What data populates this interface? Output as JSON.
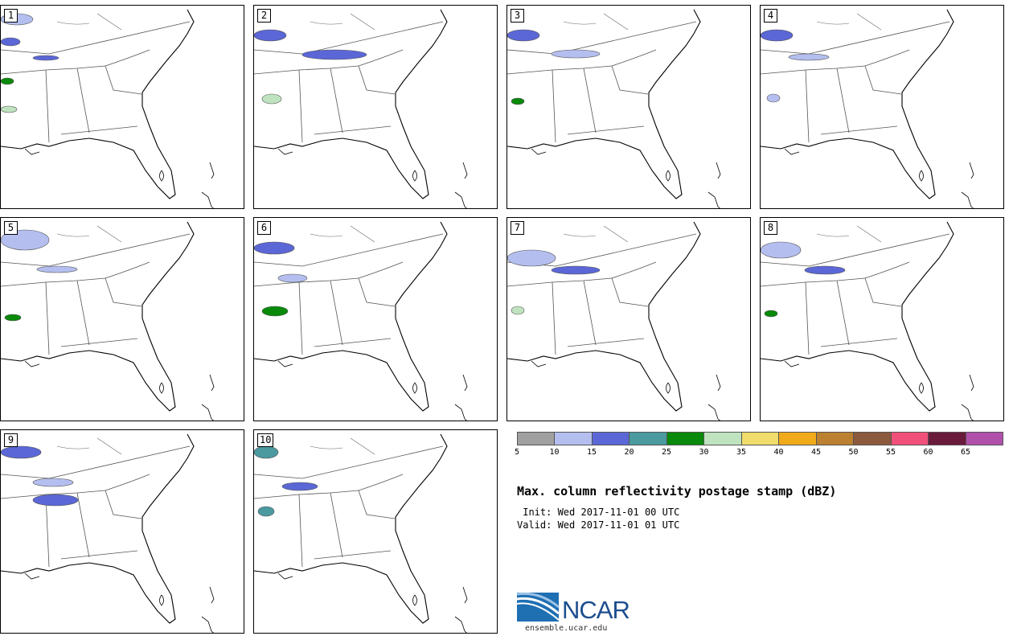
{
  "product": {
    "title": "Max. column reflectivity postage stamp (dBZ)",
    "init_line": " Init: Wed 2017-11-01 00 UTC",
    "valid_line": "Valid: Wed 2017-11-01 01 UTC"
  },
  "members": [
    {
      "label": "1"
    },
    {
      "label": "2"
    },
    {
      "label": "3"
    },
    {
      "label": "4"
    },
    {
      "label": "5"
    },
    {
      "label": "6"
    },
    {
      "label": "7"
    },
    {
      "label": "8"
    },
    {
      "label": "9"
    },
    {
      "label": "10"
    }
  ],
  "legend": {
    "tick_labels": [
      "5",
      "10",
      "15",
      "20",
      "25",
      "30",
      "35",
      "40",
      "45",
      "50",
      "55",
      "60",
      "65"
    ],
    "colors": [
      "#a0a0a0",
      "#b4bff0",
      "#5b67d6",
      "#4a9aa0",
      "#0a8a0a",
      "#bfe3bf",
      "#f0dc6a",
      "#f0aa1a",
      "#bb8030",
      "#8b5a3c",
      "#f0507a",
      "#6a1a3a",
      "#b050aa"
    ]
  },
  "branding": {
    "org": "NCAR",
    "url": "ensemble.ucar.edu"
  }
}
